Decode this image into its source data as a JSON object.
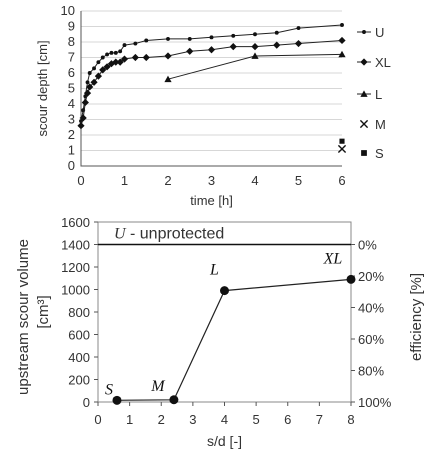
{
  "chart_data": [
    {
      "type": "line",
      "xlabel": "time [h]",
      "ylabel": "scour depth [cm]",
      "xlim": [
        0,
        6
      ],
      "ylim": [
        0,
        10
      ],
      "xticks": [
        "0",
        "1",
        "2",
        "3",
        "4",
        "5",
        "6"
      ],
      "yticks": [
        "0",
        "1",
        "2",
        "3",
        "4",
        "5",
        "6",
        "7",
        "8",
        "9",
        "10"
      ],
      "grid": true,
      "legend_position": "right",
      "series": [
        {
          "name": "U",
          "marker": "dot",
          "x": [
            0,
            0.05,
            0.1,
            0.15,
            0.2,
            0.3,
            0.4,
            0.5,
            0.6,
            0.7,
            0.8,
            0.9,
            1.0,
            1.25,
            1.5,
            2.0,
            2.5,
            3.0,
            3.5,
            4.0,
            4.5,
            5.0,
            6.0
          ],
          "y": [
            2.9,
            3.6,
            4.5,
            5.4,
            6.0,
            6.3,
            6.7,
            7.0,
            7.2,
            7.3,
            7.3,
            7.4,
            7.8,
            7.9,
            8.1,
            8.2,
            8.2,
            8.3,
            8.4,
            8.5,
            8.6,
            8.9,
            9.1
          ]
        },
        {
          "name": "XL",
          "marker": "diamond",
          "x": [
            0,
            0.05,
            0.1,
            0.15,
            0.2,
            0.3,
            0.4,
            0.5,
            0.6,
            0.7,
            0.8,
            0.9,
            1.0,
            1.25,
            1.5,
            2.0,
            2.5,
            3.0,
            3.5,
            4.0,
            4.5,
            5.0,
            6.0
          ],
          "y": [
            2.6,
            3.1,
            4.1,
            4.7,
            5.1,
            5.4,
            5.8,
            6.2,
            6.4,
            6.6,
            6.7,
            6.7,
            6.9,
            7.0,
            7.0,
            7.1,
            7.4,
            7.5,
            7.7,
            7.7,
            7.8,
            7.9,
            8.1
          ]
        },
        {
          "name": "L",
          "marker": "triangle",
          "x": [
            2.0,
            4.0,
            6.0
          ],
          "y": [
            5.6,
            7.1,
            7.2
          ]
        },
        {
          "name": "M",
          "marker": "cross",
          "x": [
            6.0
          ],
          "y": [
            1.1
          ]
        },
        {
          "name": "S",
          "marker": "square",
          "x": [
            6.0
          ],
          "y": [
            1.6
          ]
        }
      ]
    },
    {
      "type": "line",
      "xlabel": "s/d [-]",
      "ylabel": "upstream scour volume [cm³]",
      "y2label": "efficiency [%]",
      "xlim": [
        0,
        8
      ],
      "ylim": [
        0,
        1600
      ],
      "xticks": [
        "0",
        "1",
        "2",
        "3",
        "4",
        "5",
        "6",
        "7",
        "8"
      ],
      "yticks": [
        "0",
        "200",
        "400",
        "600",
        "800",
        "1000",
        "1200",
        "1400",
        "1600"
      ],
      "y2ticks": [
        "0%",
        "20%",
        "40%",
        "60%",
        "80%",
        "100%"
      ],
      "y2_values_at_volume": [
        1400,
        1120,
        840,
        560,
        280,
        0
      ],
      "grid": false,
      "reference_line": {
        "label": "U - unprotected",
        "label_italic_part": "U",
        "label_rest": " - unprotected",
        "y": 1400
      },
      "series": [
        {
          "name": "",
          "x": [
            0.6,
            2.4,
            4.0,
            8.0
          ],
          "y": [
            15,
            20,
            990,
            1090
          ]
        }
      ],
      "point_labels": [
        "S",
        "M",
        "L",
        "XL"
      ]
    }
  ]
}
